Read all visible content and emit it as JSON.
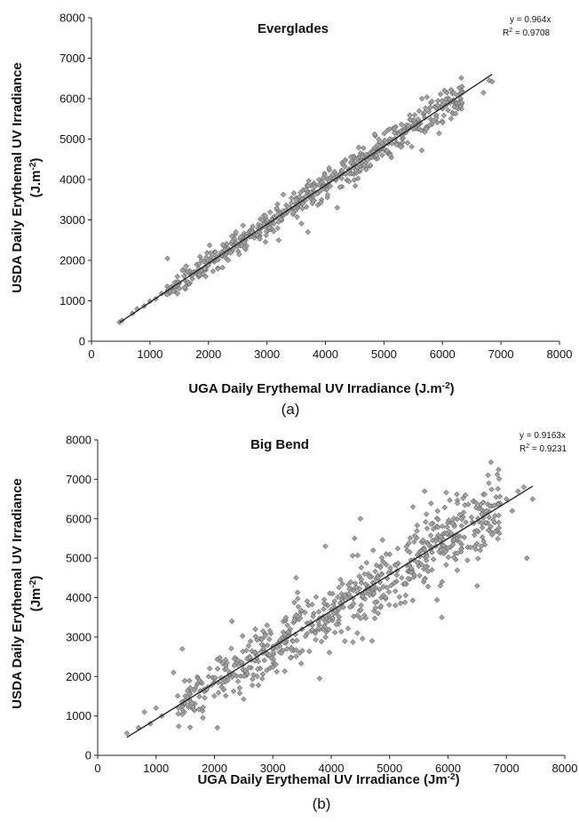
{
  "chart_data": [
    {
      "type": "scatter",
      "panel_label": "(a)",
      "title": "Everglades",
      "xlabel": "UGA Daily Erythemal UV Irradiance (J.m",
      "xlabel_sup": "-2",
      "xlabel_end": ")",
      "ylabel_line1": "USDA Daily Erythemal UV Irradiance",
      "ylabel_line2": "(J.m",
      "ylabel_sup": "-2",
      "ylabel_end": ")",
      "xlim": [
        0,
        8000
      ],
      "ylim": [
        0,
        8000
      ],
      "xticks": [
        "0",
        "1000",
        "2000",
        "3000",
        "4000",
        "5000",
        "6000",
        "7000",
        "8000"
      ],
      "yticks": [
        "0",
        "1000",
        "2000",
        "3000",
        "4000",
        "5000",
        "6000",
        "7000",
        "8000"
      ],
      "grid": false,
      "trendline": {
        "slope": 0.964,
        "intercept": 0,
        "x_range": [
          480,
          6850
        ]
      },
      "annotation": {
        "equation": "y = 0.964x",
        "r2_text": "R",
        "r2_sup": "2",
        "r2_value": " = 0.9708"
      },
      "point_summary": {
        "count": 600,
        "x_range": [
          480,
          6850
        ],
        "spread_sd": 160
      },
      "points": [
        [
          480,
          470
        ],
        [
          520,
          510
        ],
        [
          700,
          690
        ],
        [
          780,
          800
        ],
        [
          900,
          870
        ],
        [
          1000,
          990
        ],
        [
          1100,
          1050
        ],
        [
          1200,
          1180
        ],
        [
          1300,
          2050
        ],
        [
          1350,
          1250
        ],
        [
          1500,
          1450
        ],
        [
          1600,
          1500
        ],
        [
          1700,
          1650
        ],
        [
          1800,
          1900
        ],
        [
          2000,
          1950
        ],
        [
          2100,
          2200
        ],
        [
          2300,
          2150
        ],
        [
          2400,
          2600
        ],
        [
          2500,
          2350
        ],
        [
          2700,
          2600
        ],
        [
          2900,
          2800
        ],
        [
          3000,
          2900
        ],
        [
          3100,
          3050
        ],
        [
          3200,
          2500
        ],
        [
          3400,
          3300
        ],
        [
          3500,
          3550
        ],
        [
          3700,
          2700
        ],
        [
          3800,
          3900
        ],
        [
          3900,
          3700
        ],
        [
          4000,
          3850
        ],
        [
          4100,
          4000
        ],
        [
          4200,
          3300
        ],
        [
          4300,
          4150
        ],
        [
          4400,
          4250
        ],
        [
          4500,
          4350
        ],
        [
          4600,
          4650
        ],
        [
          4700,
          4550
        ],
        [
          4800,
          4700
        ],
        [
          4900,
          4750
        ],
        [
          5000,
          4850
        ],
        [
          5100,
          4950
        ],
        [
          5200,
          5300
        ],
        [
          5300,
          5100
        ],
        [
          5400,
          5250
        ],
        [
          5500,
          5300
        ],
        [
          5600,
          5450
        ],
        [
          5650,
          6000
        ],
        [
          5800,
          5900
        ],
        [
          5900,
          5800
        ],
        [
          6000,
          5750
        ],
        [
          6200,
          5900
        ],
        [
          6700,
          6150
        ],
        [
          6800,
          6450
        ],
        [
          6850,
          6420
        ]
      ]
    },
    {
      "type": "scatter",
      "panel_label": "(b)",
      "title": "Big Bend",
      "xlabel": "UGA Daily Erythemal UV Irradiance (Jm",
      "xlabel_sup": "-2",
      "xlabel_end": ")",
      "ylabel_line1": "USDA Daily Erythemal UV Irradiance",
      "ylabel_line2": "(Jm",
      "ylabel_sup": "-2",
      "ylabel_end": ")",
      "xlim": [
        0,
        8000
      ],
      "ylim": [
        0,
        8000
      ],
      "xticks": [
        "0",
        "1000",
        "2000",
        "3000",
        "4000",
        "5000",
        "6000",
        "7000",
        "8000"
      ],
      "yticks": [
        "0",
        "1000",
        "2000",
        "3000",
        "4000",
        "5000",
        "6000",
        "7000",
        "8000"
      ],
      "grid": false,
      "trendline": {
        "slope": 0.9163,
        "intercept": 0,
        "x_range": [
          500,
          7450
        ]
      },
      "annotation": {
        "equation": "y = 0.9163x",
        "r2_text": "R",
        "r2_sup": "2",
        "r2_value": " = 0.9231"
      },
      "point_summary": {
        "count": 700,
        "x_range": [
          500,
          7450
        ],
        "spread_sd": 380
      },
      "points": [
        [
          500,
          560
        ],
        [
          700,
          700
        ],
        [
          800,
          1100
        ],
        [
          900,
          800
        ],
        [
          1000,
          1200
        ],
        [
          1100,
          1000
        ],
        [
          1300,
          2100
        ],
        [
          1450,
          2700
        ],
        [
          1500,
          1500
        ],
        [
          1700,
          1800
        ],
        [
          1800,
          950
        ],
        [
          1900,
          2000
        ],
        [
          2050,
          700
        ],
        [
          2100,
          2400
        ],
        [
          2300,
          3400
        ],
        [
          2400,
          2300
        ],
        [
          2600,
          2500
        ],
        [
          2700,
          3200
        ],
        [
          2900,
          3300
        ],
        [
          3000,
          2700
        ],
        [
          3200,
          3000
        ],
        [
          3400,
          4500
        ],
        [
          3500,
          3200
        ],
        [
          3700,
          3600
        ],
        [
          3800,
          1950
        ],
        [
          3900,
          5300
        ],
        [
          4000,
          3700
        ],
        [
          4200,
          4000
        ],
        [
          4400,
          5500
        ],
        [
          4500,
          6000
        ],
        [
          4600,
          4200
        ],
        [
          4700,
          2900
        ],
        [
          4800,
          4500
        ],
        [
          5000,
          5100
        ],
        [
          5100,
          3800
        ],
        [
          5300,
          5200
        ],
        [
          5400,
          6300
        ],
        [
          5500,
          4800
        ],
        [
          5600,
          6700
        ],
        [
          5700,
          5300
        ],
        [
          5800,
          5500
        ],
        [
          5900,
          4400
        ],
        [
          6000,
          5600
        ],
        [
          6200,
          6100
        ],
        [
          6300,
          6600
        ],
        [
          6500,
          4300
        ],
        [
          6600,
          6200
        ],
        [
          6700,
          6900
        ],
        [
          6800,
          5900
        ],
        [
          7000,
          6500
        ],
        [
          7100,
          6200
        ],
        [
          7200,
          6700
        ],
        [
          7300,
          6800
        ],
        [
          7350,
          5000
        ],
        [
          7450,
          6500
        ]
      ]
    }
  ]
}
